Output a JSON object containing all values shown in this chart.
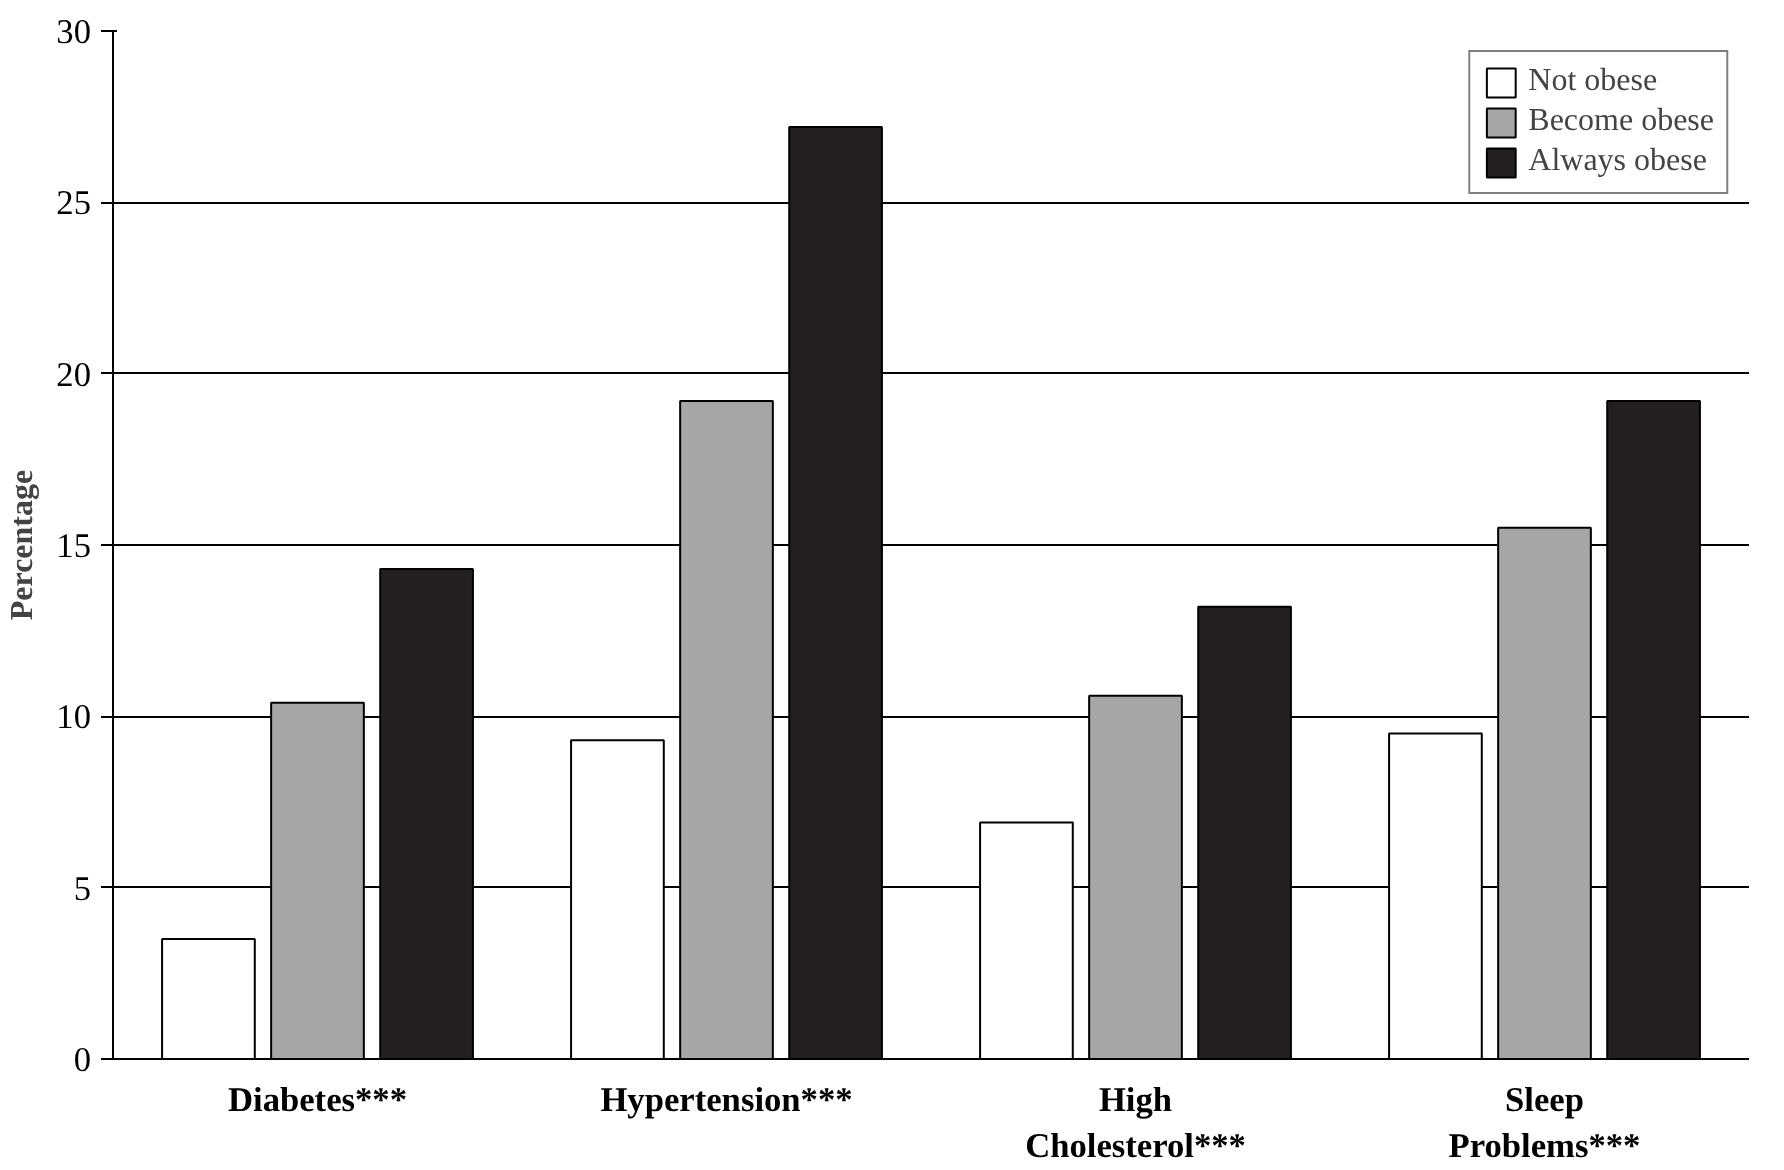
{
  "chart_data": {
    "type": "bar",
    "ylabel": "Percentage",
    "categories": [
      "Diabetes***",
      "Hypertension***",
      "High Cholesterol***",
      "Sleep Problems***"
    ],
    "series": [
      {
        "name": "Not obese",
        "color": "#ffffff",
        "values": [
          3.5,
          9.3,
          6.9,
          9.5
        ]
      },
      {
        "name": "Become obese",
        "color": "#a6a6a6",
        "values": [
          10.4,
          19.2,
          10.6,
          15.5
        ]
      },
      {
        "name": "Always obese",
        "color": "#231f20",
        "values": [
          14.3,
          27.2,
          13.2,
          19.2
        ]
      }
    ],
    "ylim": [
      0,
      30
    ],
    "yticks": [
      0,
      5,
      10,
      15,
      20,
      25,
      30
    ],
    "grid": "y",
    "legend": "top right"
  }
}
